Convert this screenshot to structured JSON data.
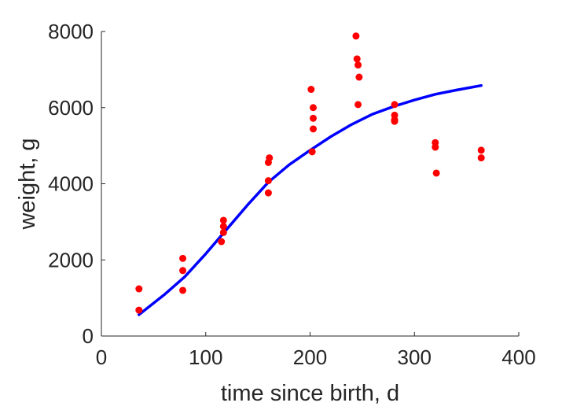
{
  "chart_data": {
    "type": "scatter",
    "xlabel": "time since birth, d",
    "ylabel": "weight, g",
    "xlim": [
      0,
      400
    ],
    "ylim": [
      0,
      8000
    ],
    "xticks": [
      0,
      100,
      200,
      300,
      400
    ],
    "yticks": [
      0,
      2000,
      4000,
      6000,
      8000
    ],
    "xtick_labels": [
      "0",
      "100",
      "200",
      "300",
      "400"
    ],
    "ytick_labels": [
      "0",
      "2000",
      "4000",
      "6000",
      "8000"
    ],
    "grid": false,
    "legend": "none",
    "series": [
      {
        "kind": "points",
        "color": "#ff0000",
        "x": [
          36,
          36,
          78,
          78,
          78,
          115,
          117,
          117,
          117,
          160,
          160,
          160,
          161,
          201,
          202,
          203,
          203,
          203,
          244,
          245,
          246,
          247,
          246,
          281,
          281,
          281,
          281,
          320,
          320,
          321,
          364,
          364
        ],
        "y": [
          1240,
          680,
          2040,
          1720,
          1200,
          2480,
          2720,
          2880,
          3040,
          3760,
          4080,
          4560,
          4680,
          6480,
          4840,
          5440,
          5720,
          6000,
          7880,
          7280,
          7120,
          6800,
          6080,
          6080,
          5800,
          5680,
          5640,
          5080,
          4960,
          4280,
          4880,
          4680
        ]
      },
      {
        "kind": "fit-line",
        "color": "#0000ff",
        "x": [
          36,
          60,
          80,
          100,
          120,
          140,
          160,
          180,
          200,
          220,
          240,
          260,
          280,
          300,
          320,
          340,
          364
        ],
        "y": [
          560,
          1080,
          1560,
          2160,
          2800,
          3440,
          4040,
          4500,
          4880,
          5240,
          5560,
          5830,
          6030,
          6200,
          6350,
          6460,
          6580
        ]
      }
    ]
  }
}
